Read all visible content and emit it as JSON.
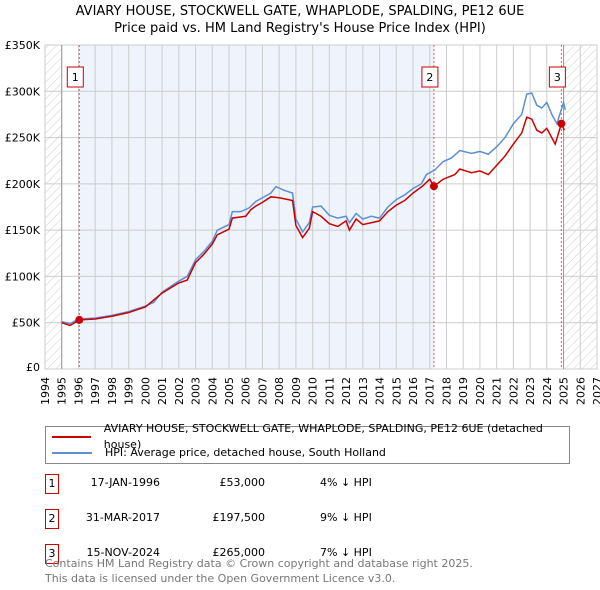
{
  "chart_data": {
    "type": "line",
    "title": "AVIARY HOUSE, STOCKWELL GATE, WHAPLODE, SPALDING, PE12 6UE",
    "subtitle": "Price paid vs. HM Land Registry's House Price Index (HPI)",
    "xlim": [
      1994,
      2027
    ],
    "ylim": [
      0,
      350000
    ],
    "x_ticks": [
      "1994",
      "1995",
      "1996",
      "1997",
      "1998",
      "1999",
      "2000",
      "2001",
      "2002",
      "2003",
      "2004",
      "2005",
      "2006",
      "2007",
      "2008",
      "2009",
      "2010",
      "2011",
      "2012",
      "2013",
      "2014",
      "2015",
      "2016",
      "2017",
      "2018",
      "2019",
      "2020",
      "2021",
      "2022",
      "2023",
      "2024",
      "2025",
      "2026",
      "2027"
    ],
    "y_ticks": [
      {
        "v": 0,
        "label": "£0"
      },
      {
        "v": 50000,
        "label": "£50K"
      },
      {
        "v": 100000,
        "label": "£100K"
      },
      {
        "v": 150000,
        "label": "£150K"
      },
      {
        "v": 200000,
        "label": "£200K"
      },
      {
        "v": 250000,
        "label": "£250K"
      },
      {
        "v": 300000,
        "label": "£300K"
      },
      {
        "v": 350000,
        "label": "£350K"
      }
    ],
    "grid": true,
    "shaded_range": [
      1996.05,
      2017.25
    ],
    "hatched_before": 1995,
    "hatched_after": 2025,
    "series": [
      {
        "name": "AVIARY HOUSE, STOCKWELL GATE, WHAPLODE, SPALDING, PE12 6UE (detached house)",
        "color": "#cc0000",
        "x": [
          1995,
          1995.5,
          1996.05,
          1997,
          1998,
          1999,
          2000,
          2001,
          2002,
          2002.5,
          2003,
          2003.5,
          2004,
          2004.3,
          2005,
          2005.2,
          2006,
          2006.3,
          2006.6,
          2007,
          2007.5,
          2008,
          2008.8,
          2009,
          2009.4,
          2009.8,
          2010,
          2010.5,
          2011,
          2011.5,
          2012,
          2012.2,
          2012.6,
          2013,
          2013.5,
          2014,
          2014.5,
          2015,
          2015.5,
          2016,
          2016.6,
          2017,
          2017.25,
          2017.8,
          2018.5,
          2018.8,
          2019.5,
          2020,
          2020.5,
          2021,
          2021.5,
          2022,
          2022.5,
          2022.8,
          2023.1,
          2023.4,
          2023.7,
          2024,
          2024.5,
          2024.87,
          2025.05
        ],
        "y": [
          50,
          47,
          53,
          54,
          57,
          61,
          67,
          82,
          93,
          96,
          115,
          124,
          135,
          145,
          151,
          163,
          165,
          172,
          176,
          180,
          186,
          185,
          182,
          155,
          142,
          152,
          170,
          165,
          157,
          154,
          160,
          150,
          162,
          156,
          158,
          160,
          170,
          177,
          182,
          190,
          198,
          205,
          197.5,
          205,
          210,
          216,
          212,
          214,
          210,
          220,
          230,
          243,
          255,
          272,
          270,
          258,
          255,
          260,
          243,
          265,
          258
        ]
      },
      {
        "name": "HPI: Average price, detached house, South Holland",
        "color": "#5b8fd6",
        "x": [
          1995,
          1995.5,
          1996,
          1997,
          1998,
          1999,
          2000,
          2000.5,
          2001,
          2002,
          2002.5,
          2003,
          2003.5,
          2004,
          2004.3,
          2005,
          2005.2,
          2005.7,
          2006.2,
          2006.6,
          2007,
          2007.5,
          2007.8,
          2008.3,
          2008.8,
          2009,
          2009.4,
          2009.8,
          2010,
          2010.5,
          2011,
          2011.5,
          2012,
          2012.2,
          2012.6,
          2013,
          2013.5,
          2014,
          2014.5,
          2015,
          2015.5,
          2016,
          2016.5,
          2016.8,
          2017.3,
          2017.8,
          2018.3,
          2018.8,
          2019.5,
          2020,
          2020.5,
          2021,
          2021.5,
          2022,
          2022.5,
          2022.8,
          2023.1,
          2023.4,
          2023.7,
          2024,
          2024.3,
          2024.6,
          2025,
          2025.1
        ],
        "y": [
          51,
          49,
          54,
          55,
          58,
          62,
          68,
          72,
          83,
          95,
          100,
          118,
          127,
          138,
          150,
          156,
          170,
          170,
          174,
          181,
          185,
          190,
          197,
          193,
          190,
          162,
          148,
          158,
          175,
          176,
          166,
          163,
          165,
          158,
          168,
          162,
          165,
          163,
          175,
          183,
          188,
          195,
          200,
          210,
          215,
          224,
          228,
          236,
          233,
          235,
          232,
          240,
          250,
          265,
          275,
          297,
          298,
          285,
          282,
          288,
          275,
          265,
          288,
          280
        ]
      }
    ],
    "sales": [
      {
        "id": "1",
        "x": 1996.05,
        "price": 53000
      },
      {
        "id": "2",
        "x": 2017.25,
        "price": 197500
      },
      {
        "id": "3",
        "x": 2024.87,
        "price": 265000
      }
    ],
    "legend_placement": "below"
  },
  "title_line1": "AVIARY HOUSE, STOCKWELL GATE, WHAPLODE, SPALDING, PE12 6UE",
  "title_line2": "Price paid vs. HM Land Registry's House Price Index (HPI)",
  "legend": [
    "AVIARY HOUSE, STOCKWELL GATE, WHAPLODE, SPALDING, PE12 6UE (detached house)",
    "HPI: Average price, detached house, South Holland"
  ],
  "colors": {
    "red": "#cc0000",
    "blue": "#5b8fd6",
    "shade": "#eef3fc"
  },
  "table": [
    {
      "num": "1",
      "date": "17-JAN-1996",
      "price": "£53,000",
      "hpi": "4% ↓ HPI"
    },
    {
      "num": "2",
      "date": "31-MAR-2017",
      "price": "£197,500",
      "hpi": "9% ↓ HPI"
    },
    {
      "num": "3",
      "date": "15-NOV-2024",
      "price": "£265,000",
      "hpi": "7% ↓ HPI"
    }
  ],
  "footer": [
    "Contains HM Land Registry data © Crown copyright and database right 2025.",
    "This data is licensed under the Open Government Licence v3.0."
  ]
}
